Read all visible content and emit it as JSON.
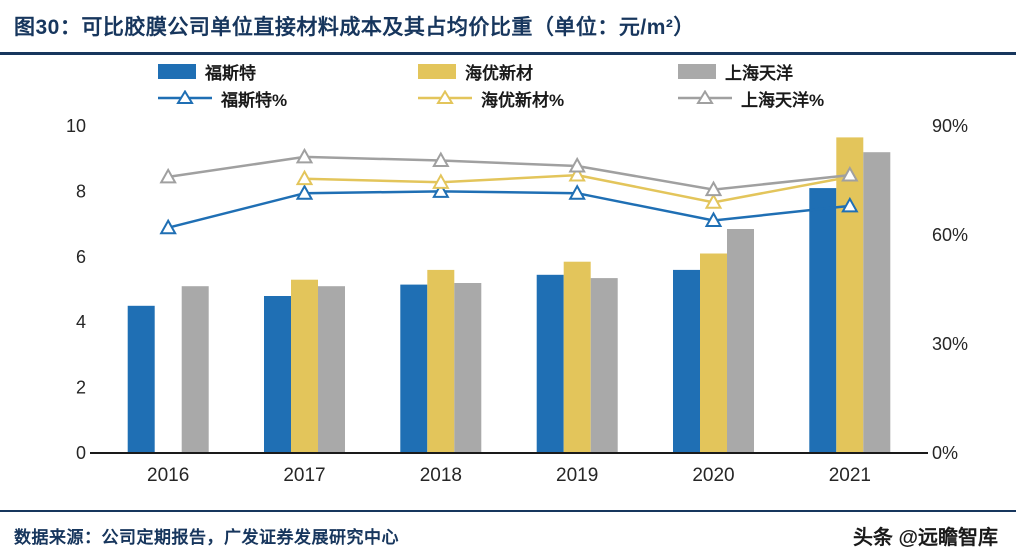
{
  "page": {
    "title": "图30：可比胶膜公司单位直接材料成本及其占均价比重（单位：元/m²）",
    "footer_source": "数据来源：公司定期报告，广发证券发展研究中心",
    "watermark": "头条 @远瞻智库",
    "accent_navy": "#17365D"
  },
  "chart_data": {
    "type": "bar+line",
    "title": "可比胶膜公司单位直接材料成本及其占均价比重（单位：元/m²）",
    "categories": [
      "2016",
      "2017",
      "2018",
      "2019",
      "2020",
      "2021"
    ],
    "bar_series": [
      {
        "name": "福斯特",
        "axis": "left",
        "color": "#1F6FB4",
        "values": [
          4.5,
          4.8,
          5.15,
          5.45,
          5.6,
          8.1
        ]
      },
      {
        "name": "海优新材",
        "axis": "left",
        "color": "#E3C55B",
        "values": [
          null,
          5.3,
          5.6,
          5.85,
          6.1,
          9.65
        ]
      },
      {
        "name": "上海天洋",
        "axis": "left",
        "color": "#A9A9A9",
        "values": [
          5.1,
          5.1,
          5.2,
          5.35,
          6.85,
          9.2
        ]
      }
    ],
    "line_series": [
      {
        "name": "福斯特%",
        "axis": "right",
        "color": "#1F6FB4",
        "values": [
          62,
          71.5,
          72,
          71.5,
          64,
          68
        ]
      },
      {
        "name": "海优新材%",
        "axis": "right",
        "color": "#E3C55B",
        "values": [
          null,
          75.5,
          74.5,
          76.5,
          69,
          76
        ]
      },
      {
        "name": "上海天洋%",
        "axis": "right",
        "color": "#A0A0A0",
        "values": [
          76,
          81.5,
          80.5,
          79,
          72.5,
          76.5
        ]
      }
    ],
    "left_axis": {
      "min": 0,
      "max": 10,
      "ticks": [
        0,
        2,
        4,
        6,
        8,
        10
      ]
    },
    "right_axis": {
      "min": 0,
      "max": 90,
      "tick_values": [
        0,
        30,
        60,
        90
      ],
      "tick_labels": [
        "0%",
        "30%",
        "60%",
        "90%"
      ]
    },
    "legend_position": "top",
    "grid": false
  }
}
